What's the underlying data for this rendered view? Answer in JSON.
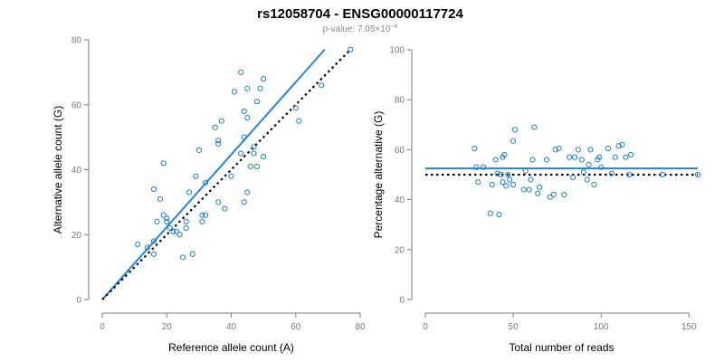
{
  "header": {
    "title": "rs12058704 - ENSG00000117724",
    "pvalue_prefix": "p-value: 7.05×10",
    "pvalue_exponent": "−4"
  },
  "colors": {
    "points": "#1c7fd0",
    "fit": "#1f86e0",
    "reference": "#000000"
  },
  "chart_data": [
    {
      "type": "scatter",
      "title": "",
      "xlabel": "Reference allele count (A)",
      "ylabel": "Alternative allele count (G)",
      "xlim": [
        0,
        80
      ],
      "ylim": [
        0,
        80
      ],
      "xticks": [
        0,
        20,
        40,
        60,
        80
      ],
      "yticks": [
        0,
        20,
        40,
        60,
        80
      ],
      "series": [
        {
          "name": "samples",
          "points": [
            [
              11,
              17
            ],
            [
              14,
              16
            ],
            [
              16,
              18
            ],
            [
              16,
              14
            ],
            [
              16,
              34
            ],
            [
              17,
              24
            ],
            [
              18,
              31
            ],
            [
              19,
              42
            ],
            [
              19,
              26
            ],
            [
              20,
              25
            ],
            [
              20,
              24
            ],
            [
              21,
              22
            ],
            [
              22,
              21
            ],
            [
              23,
              21
            ],
            [
              24,
              20
            ],
            [
              25,
              13
            ],
            [
              26,
              24
            ],
            [
              26,
              22
            ],
            [
              27,
              33
            ],
            [
              28,
              14
            ],
            [
              29,
              38
            ],
            [
              30,
              46
            ],
            [
              31,
              26
            ],
            [
              31,
              24
            ],
            [
              32,
              26
            ],
            [
              32,
              36
            ],
            [
              35,
              53
            ],
            [
              36,
              48
            ],
            [
              36,
              49
            ],
            [
              36,
              30
            ],
            [
              37,
              55
            ],
            [
              38,
              28
            ],
            [
              40,
              38
            ],
            [
              41,
              64
            ],
            [
              43,
              70
            ],
            [
              43,
              45
            ],
            [
              44,
              58
            ],
            [
              44,
              50
            ],
            [
              44,
              30
            ],
            [
              45,
              33
            ],
            [
              45,
              65
            ],
            [
              45,
              56
            ],
            [
              46,
              41
            ],
            [
              47,
              47
            ],
            [
              47,
              45
            ],
            [
              48,
              61
            ],
            [
              48,
              41
            ],
            [
              49,
              65
            ],
            [
              50,
              68
            ],
            [
              50,
              44
            ],
            [
              60,
              59
            ],
            [
              61,
              55
            ],
            [
              68,
              66
            ],
            [
              77,
              77
            ]
          ]
        }
      ],
      "lines": [
        {
          "name": "regression-fit",
          "style": "solid",
          "from": [
            0,
            0
          ],
          "to": [
            69,
            77
          ]
        },
        {
          "name": "reference-line",
          "style": "dotted",
          "from": [
            0,
            0
          ],
          "to": [
            77,
            77
          ]
        }
      ]
    },
    {
      "type": "scatter",
      "title": "",
      "xlabel": "Total number of reads",
      "ylabel": "Percentage alternative (G)",
      "xlim": [
        0,
        155
      ],
      "ylim": [
        0,
        100
      ],
      "xticks": [
        0,
        50,
        100,
        150
      ],
      "yticks": [
        0,
        20,
        40,
        60,
        80,
        100
      ],
      "series": [
        {
          "name": "samples",
          "points": [
            [
              28,
              60.5
            ],
            [
              29,
              53
            ],
            [
              30,
              47
            ],
            [
              33,
              53
            ],
            [
              37,
              34.5
            ],
            [
              38,
              46
            ],
            [
              40,
              56
            ],
            [
              41,
              50.5
            ],
            [
              42,
              34
            ],
            [
              43,
              50
            ],
            [
              44,
              47
            ],
            [
              44,
              57
            ],
            [
              45,
              58
            ],
            [
              46,
              45.5
            ],
            [
              47,
              50
            ],
            [
              48,
              48
            ],
            [
              50,
              46
            ],
            [
              50,
              63.5
            ],
            [
              51,
              68
            ],
            [
              56,
              44
            ],
            [
              57,
              51.5
            ],
            [
              59,
              44
            ],
            [
              60,
              48
            ],
            [
              61,
              56
            ],
            [
              62,
              69
            ],
            [
              64,
              42.5
            ],
            [
              65,
              45
            ],
            [
              69,
              56
            ],
            [
              71,
              41
            ],
            [
              73,
              42
            ],
            [
              74,
              60
            ],
            [
              76,
              60.5
            ],
            [
              79,
              42
            ],
            [
              82,
              57
            ],
            [
              84,
              49
            ],
            [
              85,
              57
            ],
            [
              87,
              60
            ],
            [
              89,
              56
            ],
            [
              90,
              51
            ],
            [
              92,
              48
            ],
            [
              93,
              54
            ],
            [
              94,
              60
            ],
            [
              96,
              46
            ],
            [
              98,
              56
            ],
            [
              99,
              57
            ],
            [
              100,
              53
            ],
            [
              104,
              60.5
            ],
            [
              106,
              50.5
            ],
            [
              108,
              57
            ],
            [
              110,
              61.5
            ],
            [
              112,
              62
            ],
            [
              114,
              57
            ],
            [
              116,
              50
            ],
            [
              117,
              58
            ],
            [
              135,
              50
            ],
            [
              155,
              50
            ]
          ]
        }
      ],
      "lines": [
        {
          "name": "mean-fit",
          "style": "solid",
          "from": [
            0,
            52.5
          ],
          "to": [
            155,
            52.5
          ]
        },
        {
          "name": "reference-line",
          "style": "dotted",
          "from": [
            0,
            50
          ],
          "to": [
            155,
            50
          ]
        }
      ]
    }
  ]
}
